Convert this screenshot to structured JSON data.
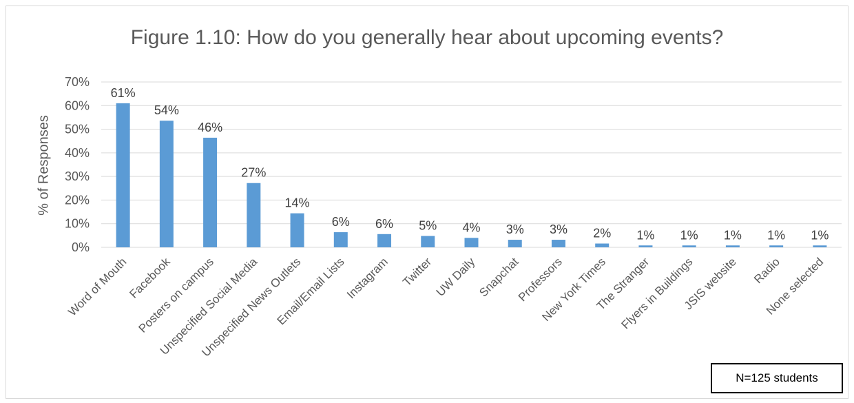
{
  "chart_data": {
    "type": "bar",
    "title": "Figure 1.10: How do you generally hear about upcoming events?",
    "ylabel": "% of Responses",
    "xlabel": "",
    "ylim": [
      0,
      70
    ],
    "yticks": [
      "0%",
      "10%",
      "20%",
      "30%",
      "40%",
      "50%",
      "60%",
      "70%"
    ],
    "grid": true,
    "bar_color": "#5b9bd5",
    "categories": [
      "Word of Mouth",
      "Facebook",
      "Posters on campus",
      "Unspecified Social Media",
      "Unspecified News Outlets",
      "Email/Email Lists",
      "Instagram",
      "Twitter",
      "UW Daily",
      "Snapchat",
      "Professors",
      "New York Times",
      "The Stranger",
      "Flyers in Buildings",
      "JSIS website",
      "Radio",
      "None selected"
    ],
    "values": [
      61,
      53.6,
      46.4,
      27.2,
      14.4,
      6.4,
      5.6,
      4.8,
      4,
      3.2,
      3.2,
      1.6,
      0.8,
      0.8,
      0.8,
      0.8,
      0.8
    ],
    "data_labels": [
      "61%",
      "54%",
      "46%",
      "27%",
      "14%",
      "6%",
      "6%",
      "5%",
      "4%",
      "3%",
      "3%",
      "2%",
      "1%",
      "1%",
      "1%",
      "1%",
      "1%"
    ],
    "annotation": "N=125 students"
  }
}
